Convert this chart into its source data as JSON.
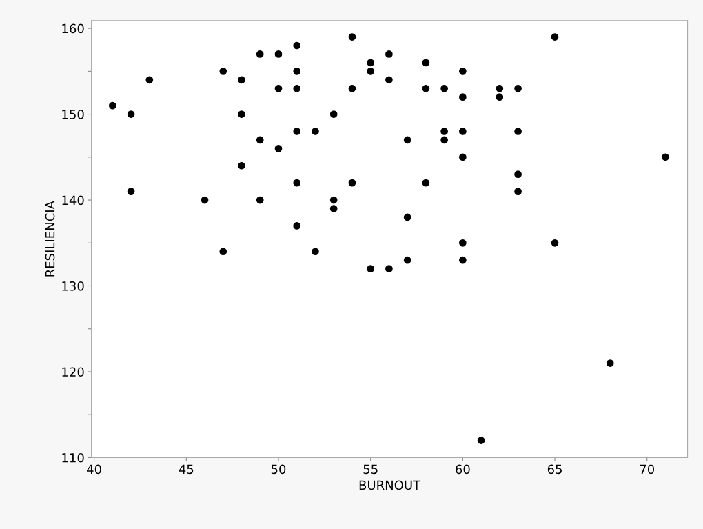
{
  "chart_data": {
    "type": "scatter",
    "xlabel": "BURNOUT",
    "ylabel": "RESILIENCIA",
    "x": [
      41,
      42,
      42,
      43,
      46,
      47,
      47,
      48,
      48,
      48,
      49,
      49,
      49,
      50,
      50,
      50,
      51,
      51,
      51,
      51,
      51,
      51,
      52,
      52,
      53,
      53,
      53,
      54,
      54,
      54,
      55,
      55,
      55,
      56,
      56,
      56,
      57,
      57,
      57,
      58,
      58,
      58,
      59,
      59,
      59,
      60,
      60,
      60,
      60,
      60,
      60,
      61,
      62,
      62,
      63,
      63,
      63,
      63,
      65,
      65,
      68,
      71
    ],
    "values": [
      151,
      150,
      141,
      154,
      140,
      155,
      134,
      154,
      150,
      144,
      157,
      147,
      140,
      157,
      153,
      146,
      158,
      155,
      153,
      148,
      142,
      137,
      148,
      134,
      150,
      140,
      139,
      159,
      153,
      142,
      156,
      155,
      132,
      157,
      154,
      132,
      147,
      138,
      133,
      156,
      153,
      142,
      153,
      148,
      147,
      155,
      152,
      148,
      145,
      135,
      133,
      112,
      153,
      152,
      153,
      148,
      143,
      141,
      159,
      135,
      121,
      145
    ],
    "color": "#000000",
    "marker": "circle",
    "xlim": [
      39.85,
      72.2
    ],
    "ylim": [
      110,
      160.9
    ],
    "xticks": [
      40,
      45,
      50,
      55,
      60,
      65,
      70
    ],
    "yticks": [
      110,
      {
        "value": 115,
        "label": null
      },
      120,
      {
        "value": 125,
        "label": null
      },
      130,
      {
        "value": 135,
        "label": null
      },
      140,
      {
        "value": 145,
        "label": null
      },
      150,
      {
        "value": 155,
        "label": null
      },
      160
    ],
    "grid": false
  }
}
